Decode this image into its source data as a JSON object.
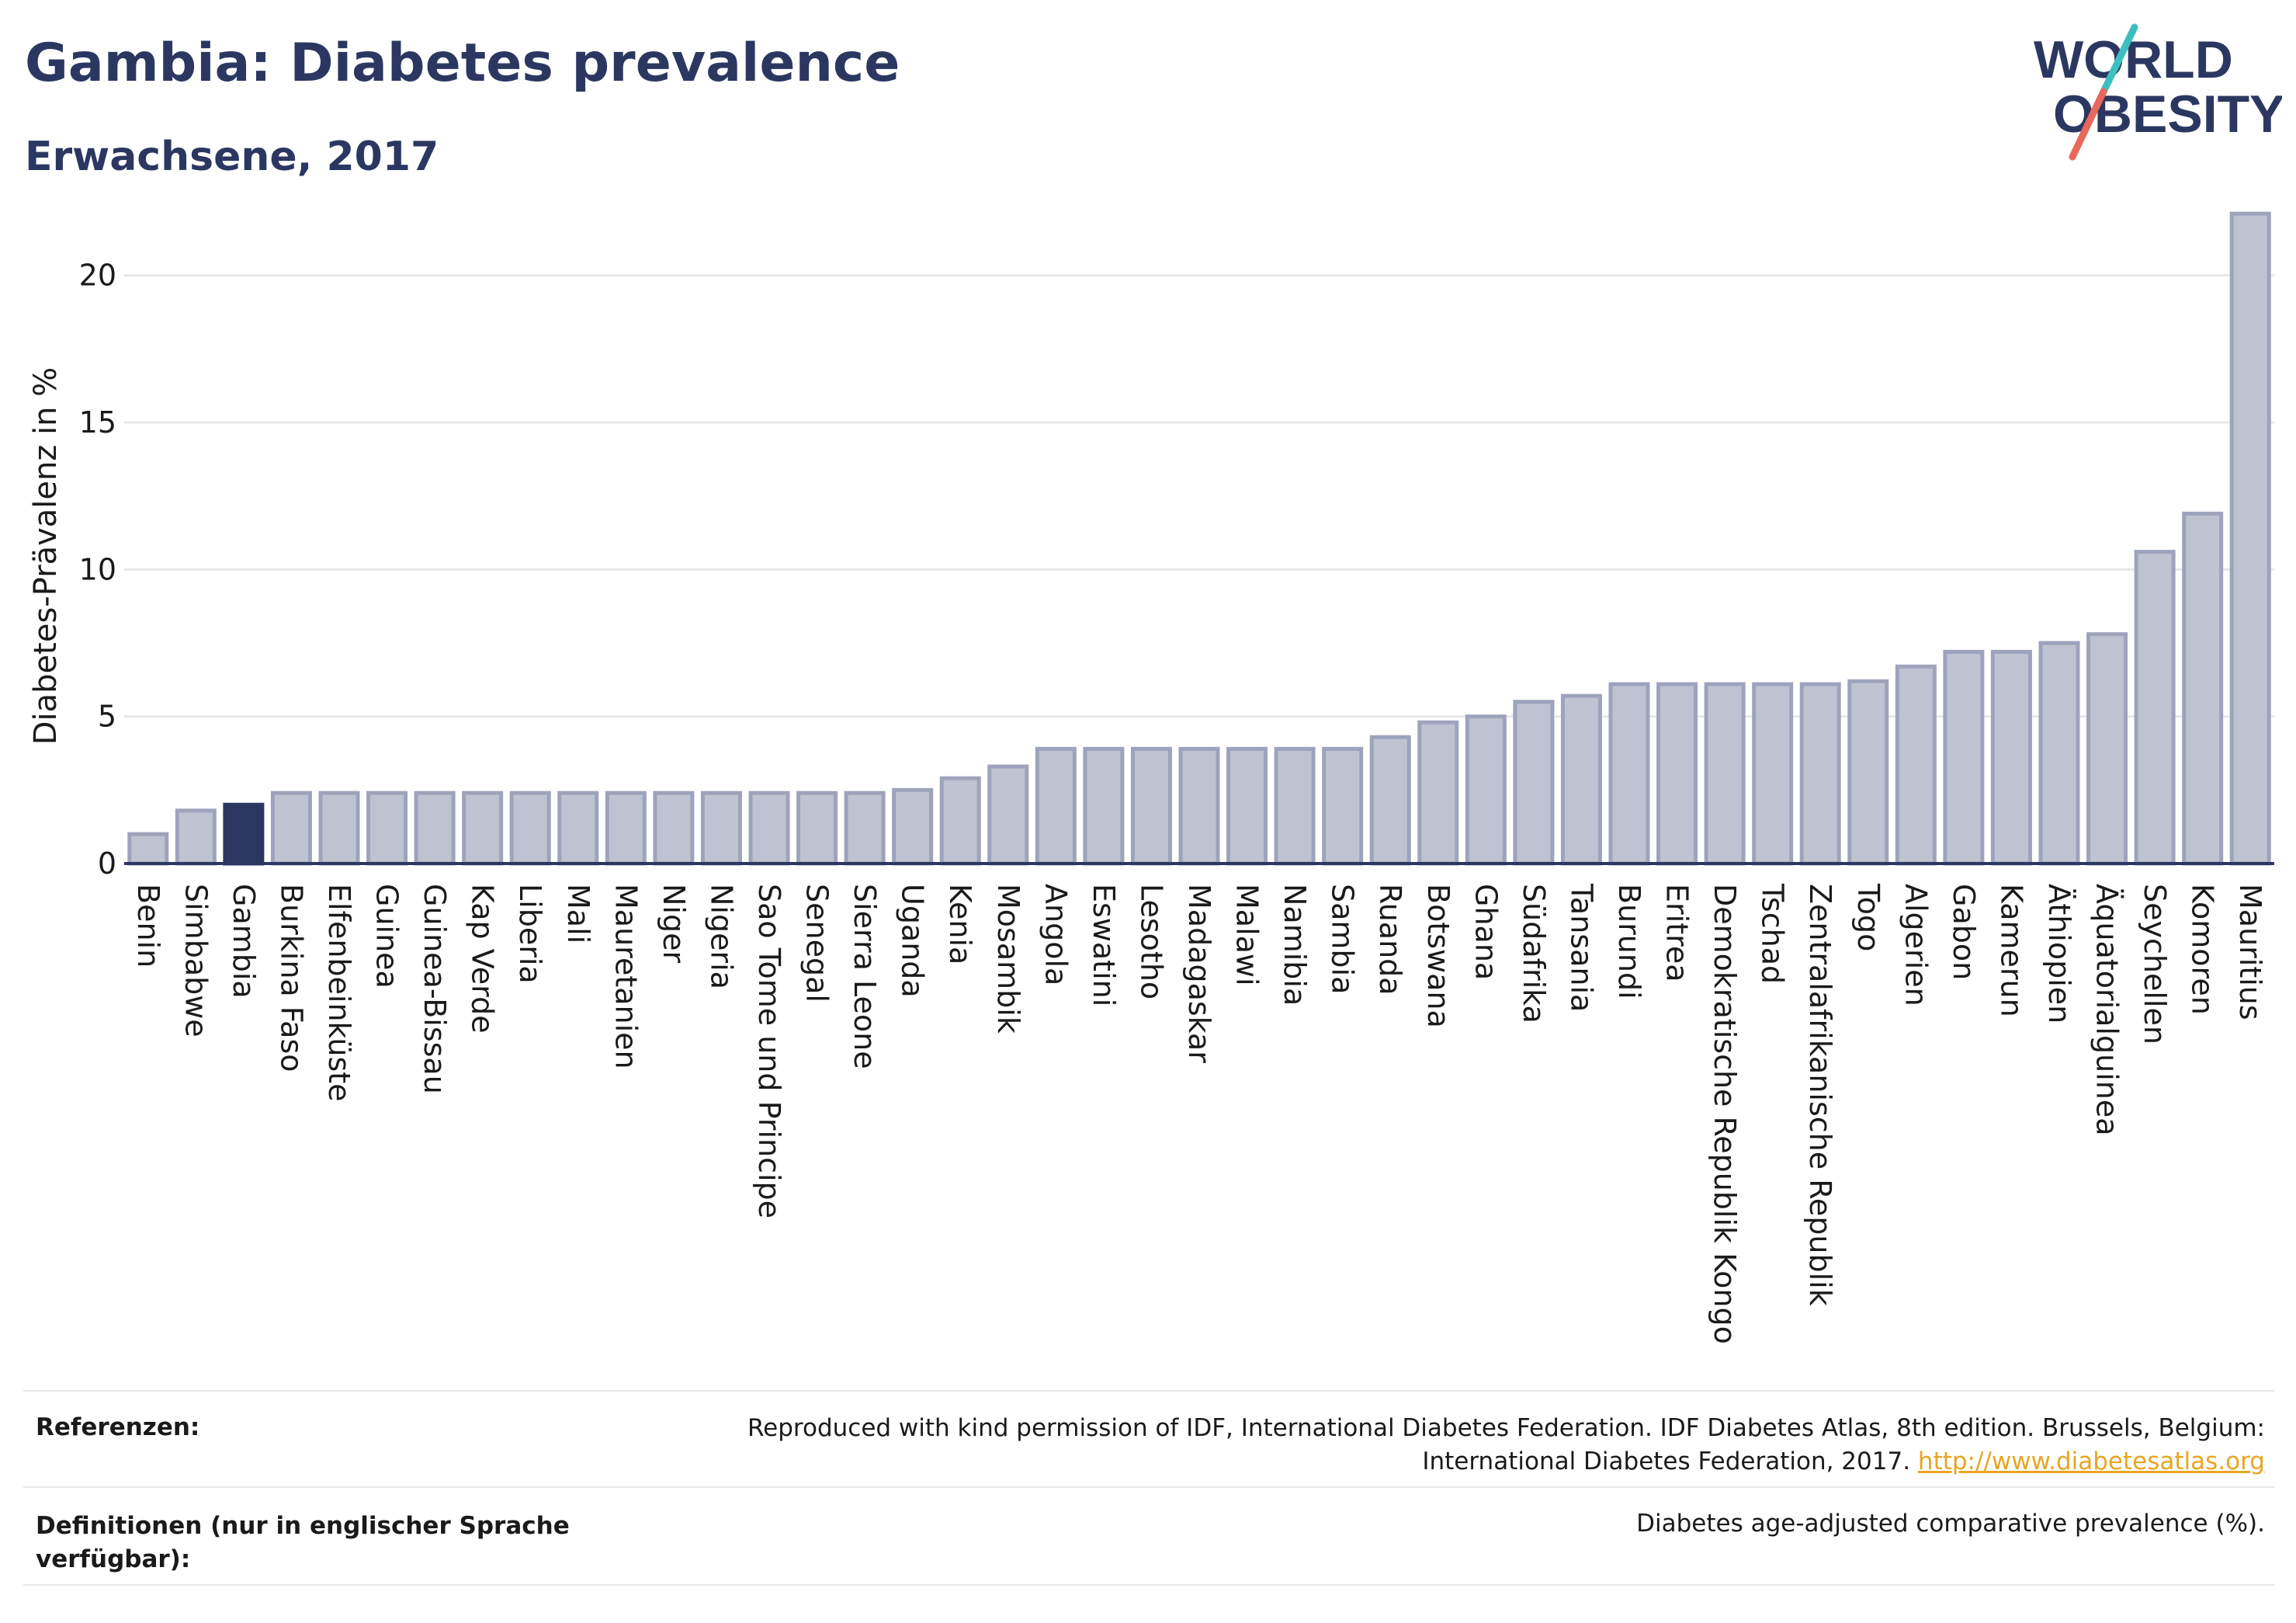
{
  "header": {
    "title": "Gambia: Diabetes prevalence",
    "subtitle": "Erwachsene, 2017"
  },
  "logo": {
    "line1": "WORLD",
    "line2": "OBESITY",
    "colors": {
      "text": "#2c3761",
      "slash_top": "#3dbfc0",
      "slash_bottom": "#e8685b"
    }
  },
  "chart_data": {
    "type": "bar",
    "title": "Gambia: Diabetes prevalence",
    "subtitle": "Erwachsene, 2017",
    "xlabel": "",
    "ylabel": "Diabetes-Prävalenz in %",
    "ylim": [
      0,
      22.5
    ],
    "yticks": [
      0,
      5,
      10,
      15,
      20
    ],
    "grid": true,
    "highlight": "Gambia",
    "colors": {
      "bar": "#bfc3d1",
      "bar_edge": "#9ea3bc",
      "highlight": "#2c3761",
      "grid": "#e8e8e8",
      "axis": "#2c3761"
    },
    "categories": [
      "Benin",
      "Simbabwe",
      "Gambia",
      "Burkina Faso",
      "Elfenbeinküste",
      "Guinea",
      "Guinea-Bissau",
      "Kap Verde",
      "Liberia",
      "Mali",
      "Mauretanien",
      "Niger",
      "Nigeria",
      "Sao Tome und Principe",
      "Senegal",
      "Sierra Leone",
      "Uganda",
      "Kenia",
      "Mosambik",
      "Angola",
      "Eswatini",
      "Lesotho",
      "Madagaskar",
      "Malawi",
      "Namibia",
      "Sambia",
      "Ruanda",
      "Botswana",
      "Ghana",
      "Südafrika",
      "Tansania",
      "Burundi",
      "Eritrea",
      "Demokratische Republik Kongo",
      "Tschad",
      "Zentralafrikanische Republik",
      "Togo",
      "Algerien",
      "Gabon",
      "Kamerun",
      "Äthiopien",
      "Äquatorialguinea",
      "Seychellen",
      "Komoren",
      "Mauritius"
    ],
    "values": [
      1.0,
      1.8,
      2.0,
      2.4,
      2.4,
      2.4,
      2.4,
      2.4,
      2.4,
      2.4,
      2.4,
      2.4,
      2.4,
      2.4,
      2.4,
      2.4,
      2.5,
      2.9,
      3.3,
      3.9,
      3.9,
      3.9,
      3.9,
      3.9,
      3.9,
      3.9,
      4.3,
      4.8,
      5.0,
      5.5,
      5.7,
      6.1,
      6.1,
      6.1,
      6.1,
      6.1,
      6.2,
      6.7,
      7.2,
      7.2,
      7.5,
      7.8,
      10.6,
      11.9,
      22.1
    ]
  },
  "footer": {
    "references_label": "Referenzen:",
    "references_text_line1": "Reproduced with kind permission of IDF, International Diabetes Federation. IDF Diabetes Atlas, 8th edition. Brussels, Belgium:",
    "references_text_line2": "International Diabetes Federation, 2017.",
    "references_link": "http://www.diabetesatlas.org",
    "definitions_label": "Definitionen (nur in englischer Sprache verfügbar):",
    "definitions_text": "Diabetes age-adjusted comparative prevalence (%)."
  }
}
